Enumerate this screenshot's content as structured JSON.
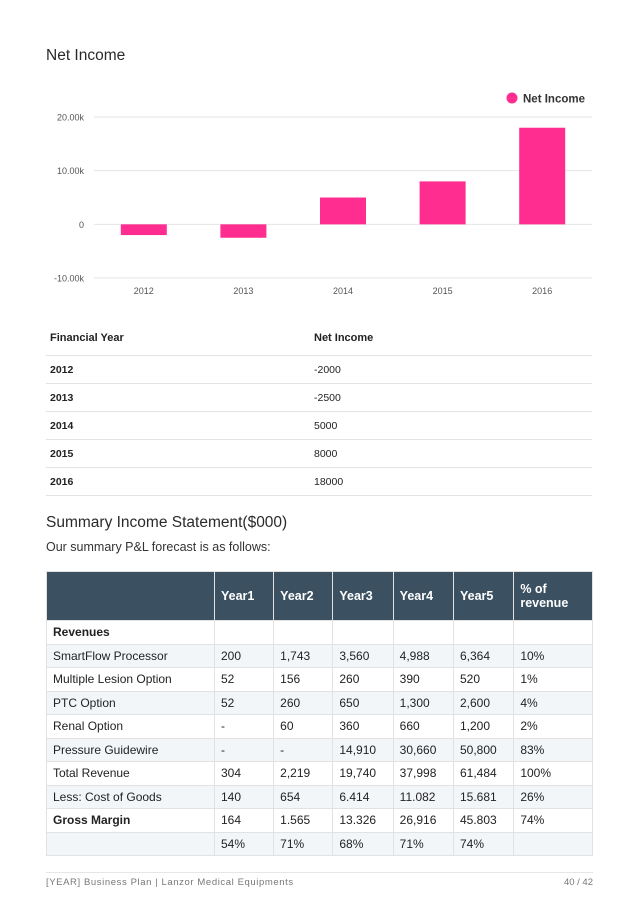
{
  "net_income_section": {
    "title": "Net Income"
  },
  "chart_data": {
    "type": "bar",
    "categories": [
      "2012",
      "2013",
      "2014",
      "2015",
      "2016"
    ],
    "series": [
      {
        "name": "Net Income",
        "values": [
          -2000,
          -2500,
          5000,
          8000,
          18000
        ]
      }
    ],
    "ylim": [
      -10000,
      20000
    ],
    "yticks": [
      -10000,
      0,
      10000,
      20000
    ],
    "ytick_labels": [
      "-10.00k",
      "0",
      "10.00k",
      "20.00k"
    ],
    "legend": "top-right",
    "grid": true,
    "bar_color": "#ff2d8f"
  },
  "net_income_table": {
    "headers": [
      "Financial Year",
      "Net Income"
    ],
    "rows": [
      [
        "2012",
        "-2000"
      ],
      [
        "2013",
        "-2500"
      ],
      [
        "2014",
        "5000"
      ],
      [
        "2015",
        "8000"
      ],
      [
        "2016",
        "18000"
      ]
    ]
  },
  "summary": {
    "title": "Summary Income Statement($000)",
    "intro": "Our summary P&L forecast is as follows:",
    "header_color": "#3b5061",
    "headers": [
      "",
      "Year1",
      "Year2",
      "Year3",
      "Year4",
      "Year5",
      "% of revenue"
    ],
    "rows": [
      [
        "Revenues",
        "",
        "",
        "",
        "",
        "",
        ""
      ],
      [
        "SmartFlow Processor",
        "200",
        "1,743",
        "3,560",
        "4,988",
        "6,364",
        "10%"
      ],
      [
        "Multiple Lesion Option",
        "52",
        "156",
        "260",
        "390",
        "520",
        "1%"
      ],
      [
        "PTC Option",
        "52",
        "260",
        "650",
        "1,300",
        "2,600",
        "4%"
      ],
      [
        "Renal Option",
        "-",
        "60",
        "360",
        "660",
        "1,200",
        "2%"
      ],
      [
        "Pressure Guidewire",
        "-",
        "-",
        "14,910",
        "30,660",
        "50,800",
        "83%"
      ],
      [
        "Total Revenue",
        "304",
        "2,219",
        "19,740",
        "37,998",
        "61,484",
        "100%"
      ],
      [
        "Less: Cost of Goods",
        "140",
        "654",
        "6.414",
        "11.082",
        "15.681",
        "26%"
      ],
      [
        "Gross Margin",
        "164",
        "1.565",
        "13.326",
        "26,916",
        "45.803",
        "74%"
      ],
      [
        "",
        "54%",
        "71%",
        "68%",
        "71%",
        "74%",
        ""
      ]
    ],
    "bold_rows": [
      0,
      8
    ]
  },
  "footer": {
    "left": "[YEAR] Business Plan | Lanzor Medical Equipments",
    "right": "40 / 42"
  }
}
